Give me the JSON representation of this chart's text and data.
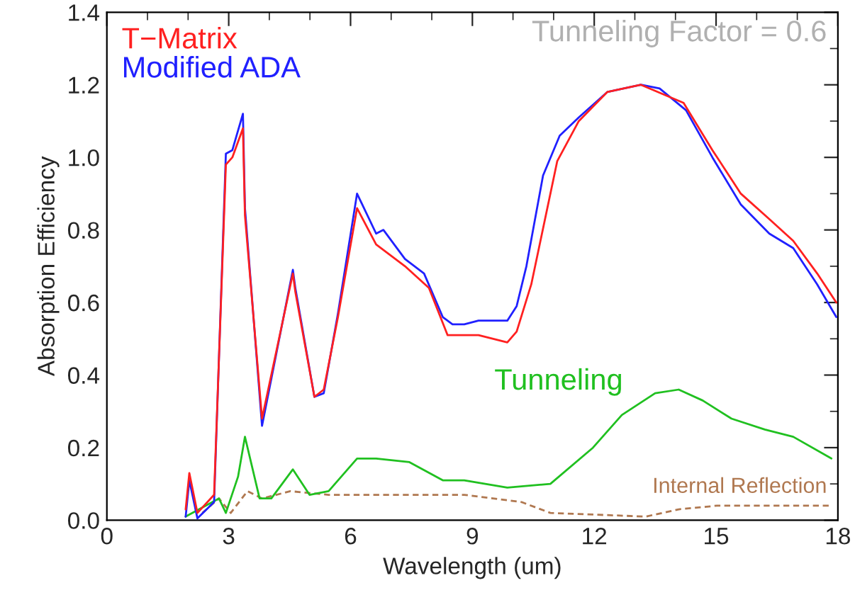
{
  "chart_data": {
    "type": "line",
    "xlabel": "Wavelength (um)",
    "ylabel": "Absorption Efficiency",
    "xlim": [
      0,
      18
    ],
    "xticks": [
      0,
      3,
      6,
      9,
      12,
      15,
      18
    ],
    "ylim": [
      0,
      1.4
    ],
    "yticks": [
      {
        "value": 0,
        "label": "0.0"
      },
      {
        "value": 0.2,
        "label": "0.2"
      },
      {
        "value": 0.4,
        "label": "0.4"
      },
      {
        "value": 0.6,
        "label": "0.6"
      },
      {
        "value": 0.8,
        "label": "0.8"
      },
      {
        "value": 1.0,
        "label": "1.0"
      },
      {
        "value": 1.2,
        "label": "1.2"
      },
      {
        "value": 1.4,
        "label": "1.4"
      }
    ],
    "grid": false,
    "legend": "top left",
    "marker": "none",
    "annotations": [
      "Tunneling Factor = 0.6"
    ],
    "series": [
      {
        "name": "T−Matrix",
        "color": "#ff2020",
        "line_style": "solid",
        "x": [
          1.94,
          2.03,
          2.23,
          2.64,
          2.93,
          3.09,
          3.35,
          3.4,
          3.82,
          4.58,
          4.64,
          5.11,
          5.34,
          5.69,
          6.16,
          6.63,
          7.34,
          7.93,
          8.39,
          8.74,
          9.15,
          9.86,
          10.09,
          10.45,
          11.09,
          11.62,
          12.32,
          13.15,
          14.2,
          14.91,
          15.61,
          16.31,
          16.9,
          17.49,
          17.96
        ],
        "values": [
          0.03,
          0.13,
          0.02,
          0.07,
          0.98,
          1.0,
          1.08,
          0.84,
          0.28,
          0.68,
          0.63,
          0.34,
          0.36,
          0.56,
          0.86,
          0.76,
          0.7,
          0.64,
          0.51,
          0.51,
          0.51,
          0.49,
          0.52,
          0.65,
          0.99,
          1.1,
          1.18,
          1.2,
          1.15,
          1.02,
          0.9,
          0.83,
          0.77,
          0.68,
          0.6
        ]
      },
      {
        "name": "Modified ADA",
        "color": "#2020ff",
        "line_style": "solid",
        "x": [
          1.94,
          2.03,
          2.23,
          2.64,
          2.93,
          3.09,
          3.35,
          3.4,
          3.82,
          4.58,
          4.64,
          5.11,
          5.34,
          5.69,
          6.16,
          6.63,
          6.81,
          7.34,
          7.81,
          8.27,
          8.51,
          8.8,
          9.15,
          9.86,
          10.09,
          10.33,
          10.74,
          11.15,
          11.62,
          12.32,
          13.15,
          13.61,
          14.26,
          14.91,
          15.61,
          16.31,
          16.9,
          17.49,
          17.96
        ],
        "values": [
          0.01,
          0.11,
          0.005,
          0.05,
          1.01,
          1.02,
          1.12,
          0.86,
          0.26,
          0.69,
          0.64,
          0.34,
          0.35,
          0.57,
          0.9,
          0.79,
          0.8,
          0.72,
          0.68,
          0.56,
          0.54,
          0.54,
          0.55,
          0.55,
          0.59,
          0.7,
          0.95,
          1.06,
          1.11,
          1.18,
          1.2,
          1.19,
          1.13,
          1.0,
          0.87,
          0.79,
          0.75,
          0.65,
          0.56
        ]
      },
      {
        "name": "Tunneling",
        "color": "#20c020",
        "line_style": "solid",
        "x": [
          1.94,
          2.76,
          2.93,
          3.23,
          3.4,
          3.76,
          4.05,
          4.58,
          4.99,
          5.46,
          6.16,
          6.63,
          7.45,
          8.27,
          8.8,
          9.86,
          10.92,
          11.97,
          12.68,
          13.5,
          14.08,
          14.67,
          15.38,
          16.2,
          16.9,
          17.84
        ],
        "values": [
          0.01,
          0.06,
          0.02,
          0.12,
          0.23,
          0.06,
          0.06,
          0.14,
          0.07,
          0.08,
          0.17,
          0.17,
          0.16,
          0.11,
          0.11,
          0.09,
          0.1,
          0.2,
          0.29,
          0.35,
          0.36,
          0.33,
          0.28,
          0.25,
          0.23,
          0.17
        ]
      },
      {
        "name": "Internal Reflection",
        "color": "#b07850",
        "line_style": "dashed",
        "x": [
          2.35,
          2.76,
          3.05,
          3.46,
          3.82,
          4.52,
          5.46,
          6.16,
          7.45,
          8.8,
          10.21,
          10.92,
          13.27,
          14.08,
          15.02,
          17.84
        ],
        "values": [
          0.02,
          0.06,
          0.02,
          0.08,
          0.06,
          0.08,
          0.07,
          0.07,
          0.07,
          0.07,
          0.05,
          0.02,
          0.01,
          0.03,
          0.04,
          0.04
        ]
      }
    ]
  }
}
